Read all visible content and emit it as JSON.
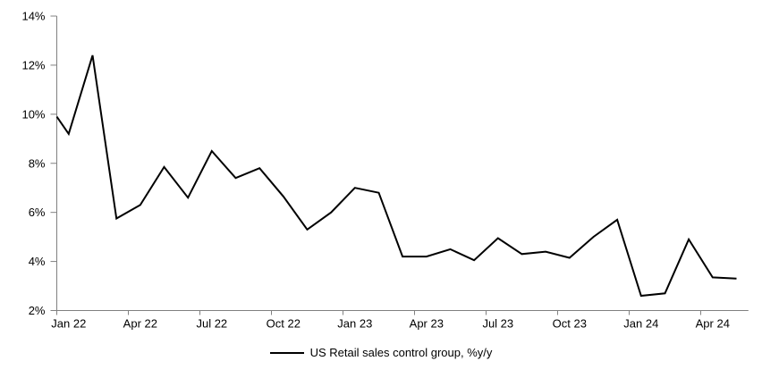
{
  "chart_data": {
    "type": "line",
    "title": "",
    "categories": [
      "Jan 22",
      "Feb 22",
      "Mar 22",
      "Apr 22",
      "May 22",
      "Jun 22",
      "Jul 22",
      "Aug 22",
      "Sep 22",
      "Oct 22",
      "Nov 22",
      "Dec 22",
      "Jan 23",
      "Feb 23",
      "Mar 23",
      "Apr 23",
      "May 23",
      "Jun 23",
      "Jul 23",
      "Aug 23",
      "Sep 23",
      "Oct 23",
      "Nov 23",
      "Dec 23",
      "Jan 24",
      "Feb 24",
      "Mar 24",
      "Apr 24",
      "May 24"
    ],
    "series": [
      {
        "name": "US Retail sales control group, %y/y",
        "color": "#000000",
        "values": [
          9.2,
          12.4,
          5.75,
          6.3,
          7.85,
          6.6,
          8.5,
          7.4,
          7.8,
          6.65,
          5.3,
          6.0,
          7.0,
          6.8,
          4.2,
          4.2,
          4.5,
          4.05,
          4.95,
          4.3,
          4.4,
          4.15,
          5.0,
          5.7,
          2.6,
          2.7,
          4.9,
          3.35,
          3.3
        ]
      }
    ],
    "lead_in_edge_value": 9.9,
    "y_axis": {
      "min": 2,
      "max": 14,
      "step": 2,
      "tick_labels": [
        "14%",
        "12%",
        "10%",
        "8%",
        "6%",
        "4%",
        "2%"
      ]
    },
    "x_axis": {
      "tick_labels": [
        "Jan 22",
        "Apr 22",
        "Jul 22",
        "Oct 22",
        "Jan 23",
        "Apr 23",
        "Jul 23",
        "Oct 23",
        "Jan 24",
        "Apr 24"
      ],
      "label_every_n_months": 3
    },
    "legend": {
      "label": "US Retail sales control group, %y/y",
      "position": "bottom-center"
    },
    "grid": false,
    "colors": {
      "axis": "#808080",
      "line": "#000000",
      "text": "#000000",
      "background": "#ffffff"
    }
  }
}
